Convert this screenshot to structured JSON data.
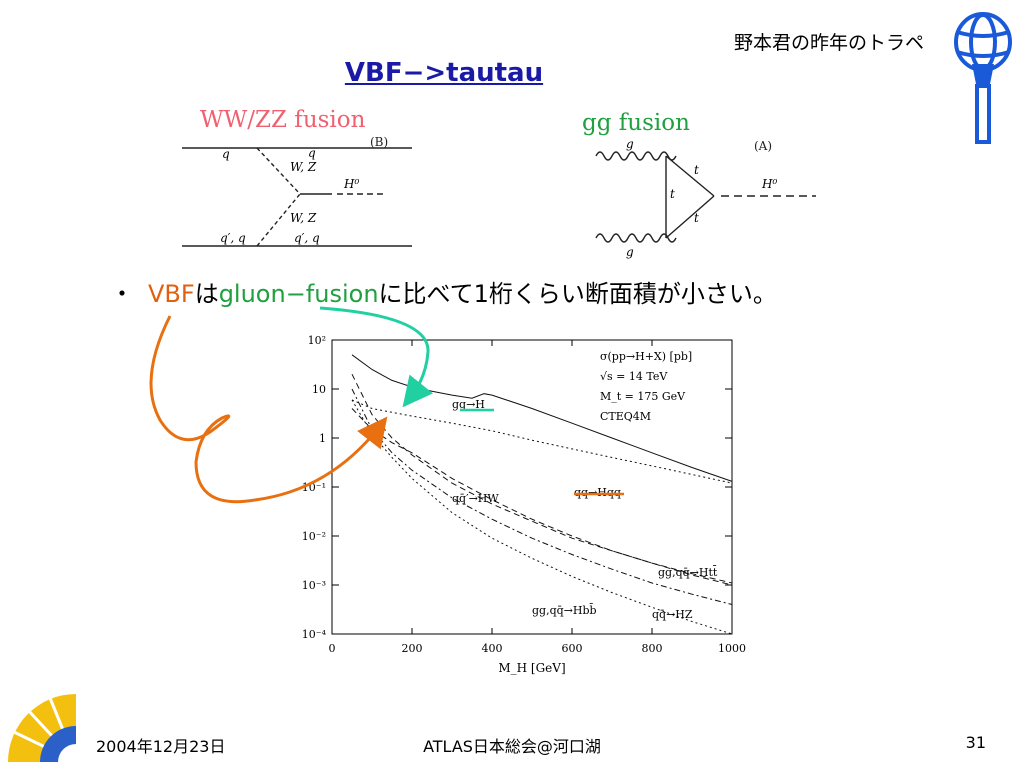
{
  "header": {
    "topic": "野本君の昨年のトラペ",
    "title": "VBF−>tautau"
  },
  "diagrams": {
    "vbf": {
      "title": "WW/ZZ fusion",
      "tag": "(B)",
      "labels": [
        "q",
        "q",
        "W, Z",
        "H⁰",
        "W, Z",
        "q′, q",
        "q′, q"
      ]
    },
    "ggf": {
      "title": "gg fusion",
      "tag": "(A)",
      "labels": [
        "g",
        "t",
        "H⁰",
        "t",
        "t",
        "g"
      ]
    }
  },
  "bullet": {
    "marker": "・",
    "vbf": "VBF",
    "ha": "は",
    "ggf": "gluon−fusion",
    "rest": "に比べて1桁くらい断面積が小さい。"
  },
  "chart_data": {
    "type": "line",
    "xlabel": "M_H [GeV]",
    "ylabel": "",
    "xlim": [
      0,
      1000
    ],
    "ylim": [
      0.0001,
      100
    ],
    "yscale": "log",
    "x_ticks": [
      "0",
      "200",
      "400",
      "600",
      "800",
      "1000"
    ],
    "y_ticks": [
      "10⁻⁴",
      "10⁻³",
      "10⁻²",
      "10⁻¹",
      "1",
      "10",
      "10²"
    ],
    "annotation_lines": [
      "σ(pp→H+X) [pb]",
      "√s = 14 TeV",
      "M_t = 175 GeV",
      "CTEQ4M"
    ],
    "series": [
      {
        "name": "gg→H",
        "style": "solid",
        "x": [
          50,
          100,
          150,
          200,
          250,
          300,
          350,
          380,
          400,
          500,
          600,
          700,
          800,
          900,
          1000
        ],
        "y": [
          50,
          25,
          15,
          11,
          9,
          7.5,
          6.5,
          8,
          7.5,
          4,
          2,
          1,
          0.5,
          0.25,
          0.13
        ]
      },
      {
        "name": "qq→Hqq",
        "style": "dotted",
        "x": [
          50,
          100,
          200,
          300,
          400,
          500,
          600,
          700,
          800,
          900,
          1000
        ],
        "y": [
          6,
          4,
          2.8,
          2,
          1.4,
          0.9,
          0.6,
          0.4,
          0.27,
          0.18,
          0.12
        ]
      },
      {
        "name": "qq̄′→HW",
        "style": "dashed",
        "x": [
          50,
          100,
          150,
          200,
          300,
          400,
          500,
          600,
          700,
          800,
          900,
          1000
        ],
        "y": [
          20,
          3,
          1,
          0.45,
          0.12,
          0.045,
          0.02,
          0.009,
          0.005,
          0.0028,
          0.0016,
          0.001
        ]
      },
      {
        "name": "qq̄→HZ",
        "style": "dashdot",
        "x": [
          50,
          100,
          150,
          200,
          300,
          400,
          500,
          600,
          700,
          800,
          900,
          1000
        ],
        "y": [
          10,
          1.5,
          0.5,
          0.22,
          0.06,
          0.022,
          0.009,
          0.0042,
          0.0021,
          0.0011,
          0.00065,
          0.0004
        ]
      },
      {
        "name": "gg,qq̄→Htt̄",
        "style": "dashed",
        "x": [
          50,
          100,
          150,
          200,
          300,
          400,
          500,
          600,
          700,
          800,
          900,
          1000
        ],
        "y": [
          4,
          1.5,
          0.8,
          0.5,
          0.15,
          0.055,
          0.022,
          0.01,
          0.005,
          0.0028,
          0.0017,
          0.0011
        ]
      },
      {
        "name": "gg,qq̄→Hbb̄",
        "style": "dotted",
        "x": [
          50,
          100,
          150,
          200,
          300,
          400,
          500,
          600,
          700,
          800,
          900,
          1000
        ],
        "y": [
          6,
          1.2,
          0.4,
          0.15,
          0.03,
          0.009,
          0.0035,
          0.0015,
          0.0007,
          0.00035,
          0.00018,
          0.0001
        ]
      }
    ],
    "series_labels": [
      "gg→H",
      "qq̄′→HW",
      "qq→Hqq",
      "gg,qq̄→Htt̄",
      "gg,qq̄→Hbb̄",
      "qq̄→HZ"
    ]
  },
  "footer": {
    "date": "2004年12月23日",
    "event": "ATLAS日本総会@河口湖",
    "page": "31"
  },
  "colors": {
    "title": "#1a1aa6",
    "vbf": "#e06010",
    "ggf": "#20a040",
    "pink": "#f06070",
    "arrow_teal": "#20d0a0",
    "arrow_orange": "#e87010"
  }
}
